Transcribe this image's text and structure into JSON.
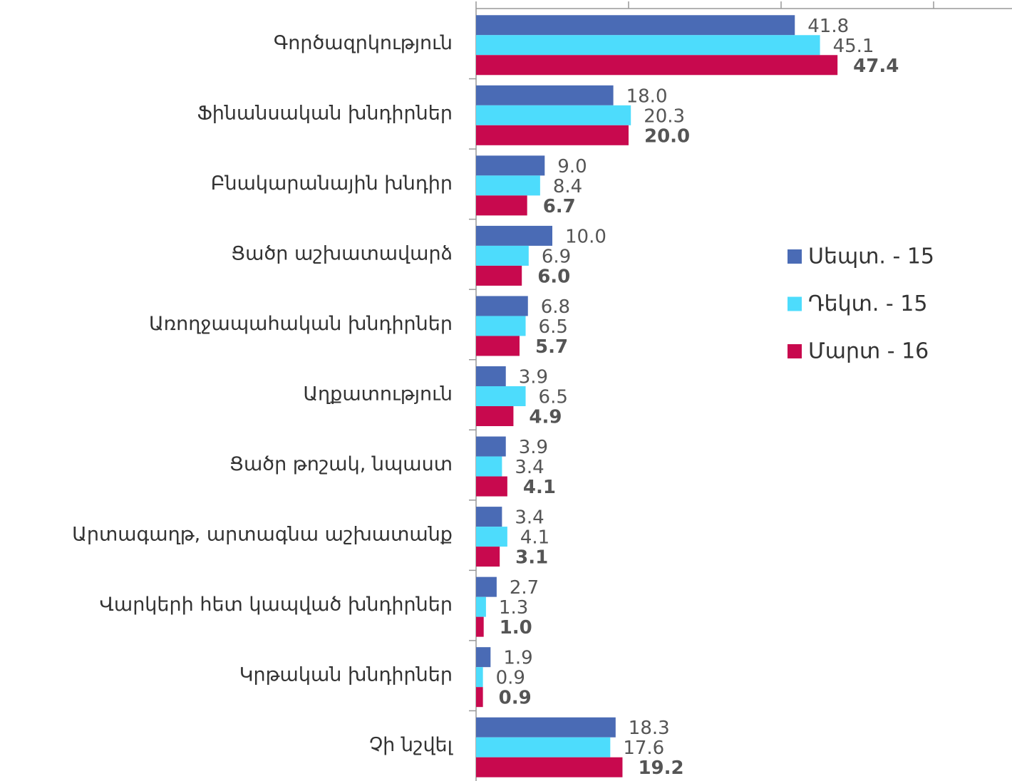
{
  "chart_data": {
    "type": "bar",
    "orientation": "horizontal",
    "categories": [
      "Գործազրկություն",
      "Ֆինանսական խնդիրներ",
      "Բնակարանային խնդիր",
      "Ցածր աշխատավարձ",
      "Առողջապահական խնդիրներ",
      "Աղքատություն",
      "Ցածր թոշակ, նպաստ",
      "Արտագաղթ, արտագնա աշխատանք",
      "Վարկերի հետ կապված խնդիրներ",
      "Կրթական խնդիրներ",
      "Չի նշվել"
    ],
    "series": [
      {
        "name": "Սեպտ. - 15",
        "color": "#4a6bb5",
        "values": [
          41.8,
          18.0,
          9.0,
          10.0,
          6.8,
          3.9,
          3.9,
          3.4,
          2.7,
          1.9,
          18.3
        ],
        "value_labels": [
          "41.8",
          "18.0",
          "9.0",
          "10.0",
          "6.8",
          "3.9",
          "3.9",
          "3.4",
          "2.7",
          "1.9",
          "18.3"
        ]
      },
      {
        "name": "Դեկտ. - 15",
        "color": "#4ddcfc",
        "values": [
          45.1,
          20.3,
          8.4,
          6.9,
          6.5,
          6.5,
          3.4,
          4.1,
          1.3,
          0.9,
          17.6
        ],
        "value_labels": [
          "45.1",
          "20.3",
          "8.4",
          "6.9",
          "6.5",
          "6.5",
          "3.4",
          "4.1",
          "1.3",
          "0.9",
          "17.6"
        ]
      },
      {
        "name": "Մարտ - 16",
        "color": "#c8094e",
        "values": [
          47.4,
          20.0,
          6.7,
          6.0,
          5.7,
          4.9,
          4.1,
          3.1,
          1.0,
          0.9,
          19.2
        ],
        "value_labels": [
          "47.4",
          "20.0",
          "6.7",
          "6.0",
          "5.7",
          "4.9",
          "4.1",
          "3.1",
          "1.0",
          "0.9",
          "19.2"
        ],
        "bold_labels": true
      }
    ],
    "xlim": [
      0,
      70
    ],
    "xticks": [
      0,
      20,
      40,
      60
    ],
    "legend": "right"
  }
}
